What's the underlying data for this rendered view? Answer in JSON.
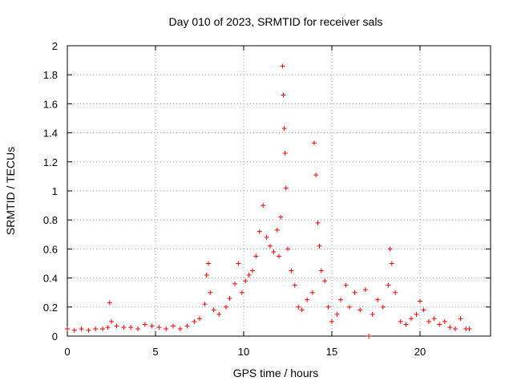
{
  "chart_data": {
    "type": "scatter",
    "title": "Day 010 of 2023, SRMTID for receiver sals",
    "xlabel": "GPS time / hours",
    "ylabel": "SRMTID / TECUs",
    "xlim": [
      0,
      24
    ],
    "ylim": [
      0,
      2
    ],
    "xticks": [
      "0",
      "5",
      "10",
      "15",
      "20"
    ],
    "yticks": [
      "0",
      "0.2",
      "0.4",
      "0.6",
      "0.8",
      "1",
      "1.2",
      "1.4",
      "1.6",
      "1.8",
      "2"
    ],
    "grid": true,
    "marker": "+",
    "color": "#ff0000",
    "series": [
      {
        "name": "SRMTID",
        "x": [
          0.0,
          0.4,
          0.8,
          1.2,
          1.6,
          2.0,
          2.3,
          2.4,
          2.5,
          2.8,
          3.2,
          3.6,
          4.0,
          4.4,
          4.8,
          5.2,
          5.6,
          6.0,
          6.4,
          6.8,
          7.2,
          7.5,
          7.8,
          7.9,
          8.0,
          8.1,
          8.3,
          8.6,
          9.0,
          9.2,
          9.5,
          9.7,
          9.9,
          10.1,
          10.3,
          10.5,
          10.7,
          10.9,
          11.1,
          11.3,
          11.5,
          11.7,
          11.9,
          12.0,
          12.1,
          12.2,
          12.25,
          12.3,
          12.35,
          12.4,
          12.5,
          12.7,
          12.9,
          13.1,
          13.3,
          13.6,
          13.9,
          14.0,
          14.1,
          14.2,
          14.3,
          14.4,
          14.6,
          14.8,
          15.0,
          15.3,
          15.5,
          15.8,
          16.0,
          16.3,
          16.6,
          16.9,
          17.1,
          17.3,
          17.6,
          17.9,
          18.2,
          18.3,
          18.4,
          18.6,
          18.9,
          19.2,
          19.5,
          19.8,
          20.0,
          20.2,
          20.5,
          20.8,
          21.1,
          21.4,
          21.7,
          22.0,
          22.3,
          22.6,
          22.8
        ],
        "y": [
          0.05,
          0.04,
          0.05,
          0.04,
          0.05,
          0.05,
          0.06,
          0.23,
          0.1,
          0.07,
          0.06,
          0.06,
          0.05,
          0.08,
          0.07,
          0.06,
          0.05,
          0.07,
          0.05,
          0.07,
          0.1,
          0.12,
          0.22,
          0.42,
          0.5,
          0.3,
          0.18,
          0.15,
          0.2,
          0.26,
          0.36,
          0.5,
          0.3,
          0.38,
          0.42,
          0.45,
          0.55,
          0.72,
          0.9,
          0.68,
          0.62,
          0.58,
          0.73,
          0.55,
          0.82,
          1.86,
          1.66,
          1.43,
          1.26,
          1.02,
          0.6,
          0.45,
          0.35,
          0.2,
          0.18,
          0.25,
          0.3,
          1.33,
          1.11,
          0.78,
          0.62,
          0.45,
          0.38,
          0.2,
          0.1,
          0.15,
          0.25,
          0.35,
          0.2,
          0.3,
          0.18,
          0.32,
          0.0,
          0.15,
          0.25,
          0.2,
          0.35,
          0.6,
          0.5,
          0.3,
          0.1,
          0.08,
          0.12,
          0.15,
          0.24,
          0.18,
          0.1,
          0.12,
          0.08,
          0.1,
          0.06,
          0.05,
          0.12,
          0.05,
          0.05
        ]
      }
    ]
  }
}
